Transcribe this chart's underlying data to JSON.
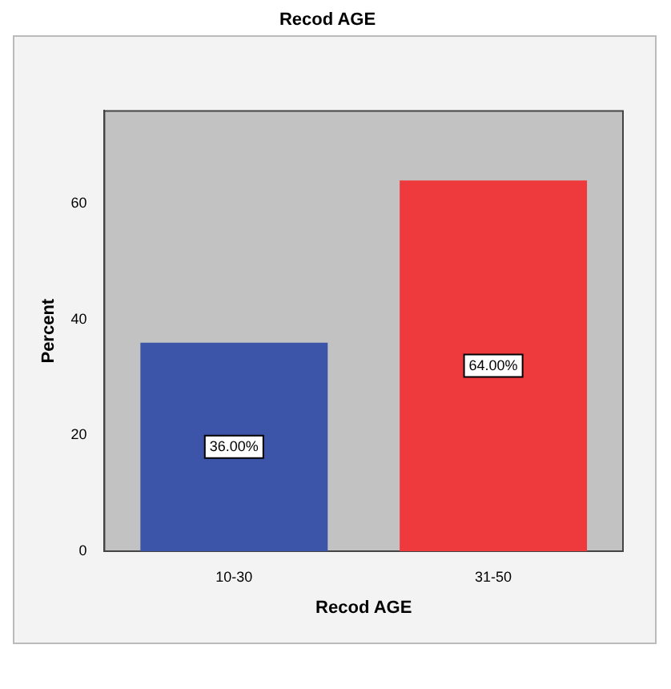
{
  "chart_data": {
    "type": "bar",
    "title": "Recod AGE",
    "xlabel": "Recod AGE",
    "ylabel": "Percent",
    "categories": [
      "10-30",
      "31-50"
    ],
    "values": [
      36,
      64
    ],
    "colors": [
      "#3d55a8",
      "#ee3a3d"
    ],
    "value_labels": [
      "36.00%",
      "64.00%"
    ],
    "ylim": [
      0,
      76
    ],
    "yticks": [
      0,
      20,
      40,
      60
    ],
    "grid": false,
    "legend": false
  }
}
